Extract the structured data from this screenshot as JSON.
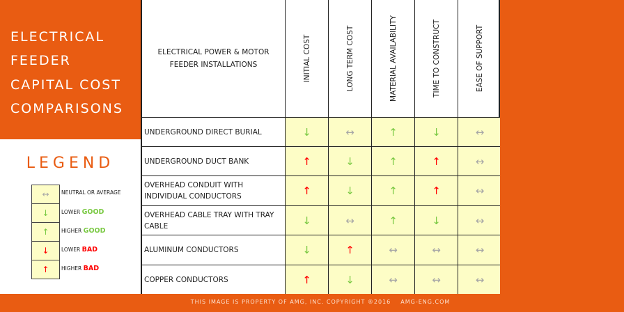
{
  "title": {
    "lines": [
      "ELECTRICAL",
      "FEEDER",
      "CAPITAL COST",
      "COMPARISONS"
    ]
  },
  "legend": {
    "title": "LEGEND",
    "items": [
      {
        "symbol": "↔",
        "color": "#a6a6a6",
        "label": "NEUTRAL OR AVERAGE",
        "emphasis": "",
        "emphasis_color": ""
      },
      {
        "symbol": "↓",
        "color": "#7ac943",
        "label": "LOWER ",
        "emphasis": "GOOD",
        "emphasis_color": "#7ac943"
      },
      {
        "symbol": "↑",
        "color": "#7ac943",
        "label": "HIGHER ",
        "emphasis": "GOOD",
        "emphasis_color": "#7ac943"
      },
      {
        "symbol": "↓",
        "color": "#ff0000",
        "label": "LOWER ",
        "emphasis": "BAD",
        "emphasis_color": "#ff0000"
      },
      {
        "symbol": "↑",
        "color": "#ff0000",
        "label": "HIGHER ",
        "emphasis": "BAD",
        "emphasis_color": "#ff0000"
      }
    ]
  },
  "table": {
    "header_name": "ELECTRICAL POWER & MOTOR FEEDER INSTALLATIONS",
    "columns": [
      "INITIAL COST",
      "LONG TERM COST",
      "MATERIAL AVAILABILITY",
      "TIME TO CONSTRUCT",
      "EASE OF SUPPORT"
    ],
    "symbols": {
      "neutral": {
        "glyph": "↔",
        "color": "#a6a6a6"
      },
      "lower_good": {
        "glyph": "↓",
        "color": "#7ac943"
      },
      "higher_good": {
        "glyph": "↑",
        "color": "#7ac943"
      },
      "lower_bad": {
        "glyph": "↓",
        "color": "#ff0000"
      },
      "higher_bad": {
        "glyph": "↑",
        "color": "#ff0000"
      }
    },
    "rows": [
      {
        "name": "UNDERGROUND DIRECT BURIAL",
        "values": [
          "lower_good",
          "neutral",
          "higher_good",
          "lower_good",
          "neutral"
        ]
      },
      {
        "name": "UNDERGROUND DUCT BANK",
        "values": [
          "higher_bad",
          "lower_good",
          "higher_good",
          "higher_bad",
          "neutral"
        ]
      },
      {
        "name": "OVERHEAD CONDUIT WITH INDIVIDUAL CONDUCTORS",
        "values": [
          "higher_bad",
          "lower_good",
          "higher_good",
          "higher_bad",
          "neutral"
        ]
      },
      {
        "name": "OVERHEAD CABLE TRAY WITH TRAY CABLE",
        "values": [
          "lower_good",
          "neutral",
          "higher_good",
          "lower_good",
          "neutral"
        ]
      },
      {
        "name": "ALUMINUM CONDUCTORS",
        "values": [
          "lower_good",
          "higher_bad",
          "neutral",
          "neutral",
          "neutral"
        ]
      },
      {
        "name": "COPPER CONDUCTORS",
        "values": [
          "higher_bad",
          "lower_good",
          "neutral",
          "neutral",
          "neutral"
        ]
      }
    ]
  },
  "footer": {
    "notice": "THIS IMAGE IS PROPERTY OF AMG, INC.  COPYRIGHT ®2016",
    "website": "AMG-ENG.COM"
  },
  "colors": {
    "brand_orange": "#e95c12",
    "cell_yellow": "#fdfdc6"
  }
}
